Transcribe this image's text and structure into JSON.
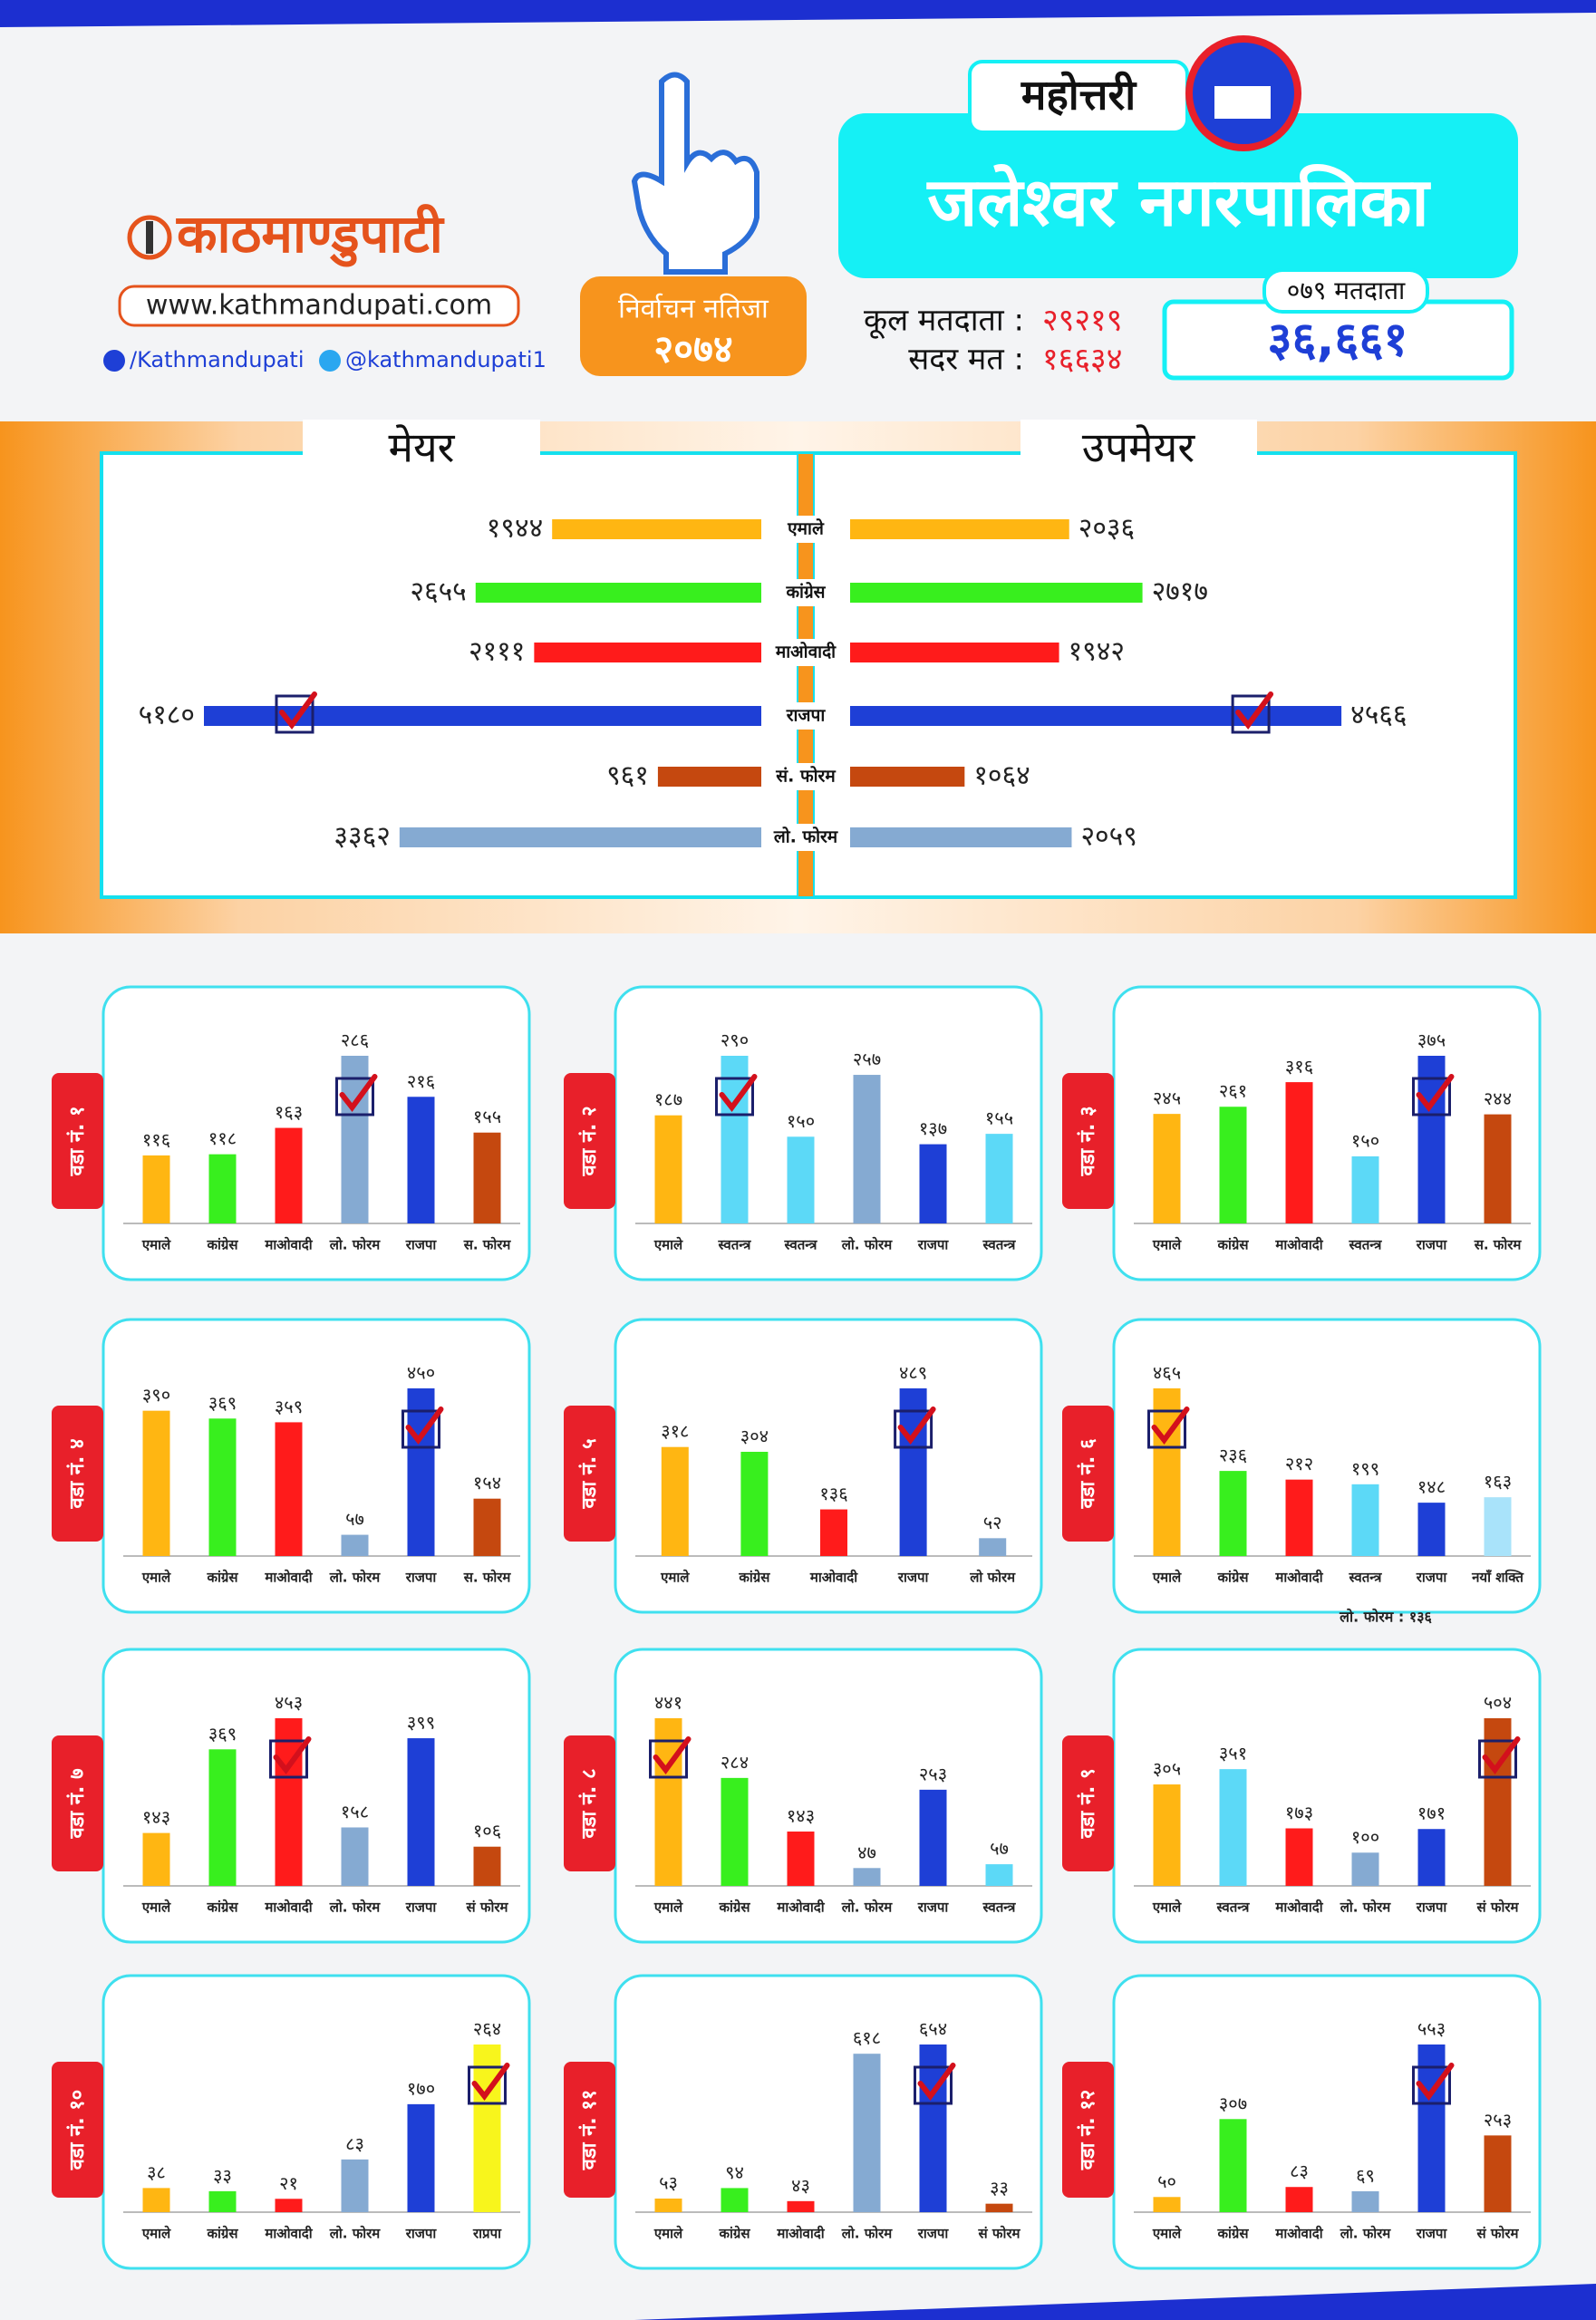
{
  "header": {
    "logo": "काठमाण्डुपाटी",
    "website": "www.kathmandupati.com",
    "facebook": "/Kathmandupati",
    "twitter": "@kathmandupati1",
    "badge_title": "निर्वाचन नतिजा",
    "badge_year": "२०७४",
    "district": "महोत्तरी",
    "municipality": "जलेश्वर नगरपालिका",
    "total_voters_label": "कूल मतदाता :",
    "total_voters": "२९२१९",
    "valid_votes_label": "सदर मत :",
    "valid_votes": "१६६३४",
    "voters_079_label": "०७९ मतदाता",
    "voters_079": "३६,६६१"
  },
  "chart_data": [
    {
      "type": "diverging-bar",
      "categories": [
        "एमाले",
        "कांग्रेस",
        "माओवादी",
        "राजपा",
        "सं. फोरम",
        "लो. फोरम"
      ],
      "colors": [
        "#ffb612",
        "#38ef1e",
        "#ff1b1b",
        "#1e3fd6",
        "#c5480f",
        "#85aad2"
      ],
      "series": [
        {
          "name": "मेयर",
          "values": [
            1944,
            2655,
            2111,
            5180,
            961,
            3362
          ],
          "value_labels": [
            "१९४४",
            "२६५५",
            "२१११",
            "५१८०",
            "९६१",
            "३३६२"
          ]
        },
        {
          "name": "उपमेयर",
          "values": [
            2036,
            2717,
            1942,
            4566,
            1064,
            2059
          ],
          "value_labels": [
            "२०३६",
            "२७१७",
            "१९४२",
            "४५६६",
            "१०६४",
            "२०५९"
          ]
        }
      ]
    },
    {
      "type": "bar",
      "title": "वडा नं. १",
      "categories": [
        "एमाले",
        "कांग्रेस",
        "माओवादी",
        "लो. फोरम",
        "राजपा",
        "स. फोरम"
      ],
      "values": [
        116,
        118,
        163,
        286,
        216,
        155
      ],
      "value_labels": [
        "११६",
        "११८",
        "१६३",
        "२८६",
        "२१६",
        "१५५"
      ],
      "colors": [
        "#ffb612",
        "#38ef1e",
        "#ff1b1b",
        "#85aad2",
        "#1e3fd6",
        "#c5480f"
      ]
    },
    {
      "type": "bar",
      "title": "वडा नं. २",
      "categories": [
        "एमाले",
        "स्वतन्त्र",
        "स्वतन्त्र",
        "लो. फोरम",
        "राजपा",
        "स्वतन्त्र"
      ],
      "values": [
        187,
        290,
        150,
        257,
        137,
        155
      ],
      "value_labels": [
        "१८७",
        "२९०",
        "१५०",
        "२५७",
        "१३७",
        "१५५"
      ],
      "colors": [
        "#ffb612",
        "#5cd9f7",
        "#5cd9f7",
        "#85aad2",
        "#1e3fd6",
        "#5cd9f7"
      ]
    },
    {
      "type": "bar",
      "title": "वडा नं. ३",
      "categories": [
        "एमाले",
        "कांग्रेस",
        "माओवादी",
        "स्वतन्त्र",
        "राजपा",
        "स. फोरम"
      ],
      "values": [
        245,
        261,
        316,
        150,
        375,
        244
      ],
      "value_labels": [
        "२४५",
        "२६१",
        "३१६",
        "१५०",
        "३७५",
        "२४४"
      ],
      "colors": [
        "#ffb612",
        "#38ef1e",
        "#ff1b1b",
        "#5cd9f7",
        "#1e3fd6",
        "#c5480f"
      ]
    },
    {
      "type": "bar",
      "title": "वडा नं. ४",
      "categories": [
        "एमाले",
        "कांग्रेस",
        "माओवादी",
        "लो. फोरम",
        "राजपा",
        "स. फोरम"
      ],
      "values": [
        390,
        369,
        359,
        57,
        450,
        154
      ],
      "value_labels": [
        "३९०",
        "३६९",
        "३५९",
        "५७",
        "४५०",
        "१५४"
      ],
      "colors": [
        "#ffb612",
        "#38ef1e",
        "#ff1b1b",
        "#85aad2",
        "#1e3fd6",
        "#c5480f"
      ]
    },
    {
      "type": "bar",
      "title": "वडा नं. ५",
      "categories": [
        "एमाले",
        "कांग्रेस",
        "माओवादी",
        "राजपा",
        "लो फोरम"
      ],
      "values": [
        318,
        304,
        136,
        489,
        52
      ],
      "value_labels": [
        "३१८",
        "३०४",
        "१३६",
        "४८९",
        "५२"
      ],
      "colors": [
        "#ffb612",
        "#38ef1e",
        "#ff1b1b",
        "#1e3fd6",
        "#85aad2"
      ]
    },
    {
      "type": "bar",
      "title": "वडा नं. ६",
      "categories": [
        "एमाले",
        "कांग्रेस",
        "माओवादी",
        "स्वतन्त्र",
        "राजपा",
        "नयाँ शक्ति"
      ],
      "values": [
        465,
        236,
        212,
        199,
        148,
        163
      ],
      "value_labels": [
        "४६५",
        "२३६",
        "२१२",
        "१९९",
        "१४८",
        "१६३"
      ],
      "colors": [
        "#ffb612",
        "#38ef1e",
        "#ff1b1b",
        "#5cd9f7",
        "#1e3fd6",
        "#a9e3fa"
      ],
      "annotation": "लो. फोरम : १३६"
    },
    {
      "type": "bar",
      "title": "वडा नं. ७",
      "categories": [
        "एमाले",
        "कांग्रेस",
        "माओवादी",
        "लो. फोरम",
        "राजपा",
        "सं फोरम"
      ],
      "values": [
        143,
        369,
        453,
        158,
        399,
        106
      ],
      "value_labels": [
        "१४३",
        "३६९",
        "४५३",
        "१५८",
        "३९९",
        "१०६"
      ],
      "colors": [
        "#ffb612",
        "#38ef1e",
        "#ff1b1b",
        "#85aad2",
        "#1e3fd6",
        "#c5480f"
      ]
    },
    {
      "type": "bar",
      "title": "वडा नं. ८",
      "categories": [
        "एमाले",
        "कांग्रेस",
        "माओवादी",
        "लो. फोरम",
        "राजपा",
        "स्वतन्त्र"
      ],
      "values": [
        441,
        284,
        143,
        47,
        253,
        57
      ],
      "value_labels": [
        "४४१",
        "२८४",
        "१४३",
        "४७",
        "२५३",
        "५७"
      ],
      "colors": [
        "#ffb612",
        "#38ef1e",
        "#ff1b1b",
        "#85aad2",
        "#1e3fd6",
        "#5cd9f7"
      ]
    },
    {
      "type": "bar",
      "title": "वडा नं. ९",
      "categories": [
        "एमाले",
        "स्वतन्त्र",
        "माओवादी",
        "लो. फोरम",
        "राजपा",
        "सं फोरम"
      ],
      "values": [
        305,
        351,
        173,
        100,
        171,
        504
      ],
      "value_labels": [
        "३०५",
        "३५१",
        "१७३",
        "१००",
        "१७१",
        "५०४"
      ],
      "colors": [
        "#ffb612",
        "#5cd9f7",
        "#ff1b1b",
        "#85aad2",
        "#1e3fd6",
        "#c5480f"
      ]
    },
    {
      "type": "bar",
      "title": "वडा नं. १०",
      "categories": [
        "एमाले",
        "कांग्रेस",
        "माओवादी",
        "लो. फोरम",
        "राजपा",
        "राप्रपा"
      ],
      "values": [
        38,
        33,
        21,
        83,
        170,
        264
      ],
      "value_labels": [
        "३८",
        "३३",
        "२१",
        "८३",
        "१७०",
        "२६४"
      ],
      "colors": [
        "#ffb612",
        "#38ef1e",
        "#ff1b1b",
        "#85aad2",
        "#1e3fd6",
        "#f8f51c"
      ]
    },
    {
      "type": "bar",
      "title": "वडा नं. ११",
      "categories": [
        "एमाले",
        "कांग्रेस",
        "माओवादी",
        "लो. फोरम",
        "राजपा",
        "सं फोरम"
      ],
      "values": [
        53,
        94,
        43,
        618,
        654,
        33
      ],
      "value_labels": [
        "५३",
        "९४",
        "४३",
        "६१८",
        "६५४",
        "३३"
      ],
      "colors": [
        "#ffb612",
        "#38ef1e",
        "#ff1b1b",
        "#85aad2",
        "#1e3fd6",
        "#c5480f"
      ]
    },
    {
      "type": "bar",
      "title": "वडा नं. १२",
      "categories": [
        "एमाले",
        "कांग्रेस",
        "माओवादी",
        "लो. फोरम",
        "राजपा",
        "सं फोरम"
      ],
      "values": [
        50,
        307,
        83,
        69,
        553,
        253
      ],
      "value_labels": [
        "५०",
        "३०७",
        "८३",
        "६९",
        "५५३",
        "२५३"
      ],
      "colors": [
        "#ffb612",
        "#38ef1e",
        "#ff1b1b",
        "#85aad2",
        "#1e3fd6",
        "#c5480f"
      ]
    }
  ]
}
